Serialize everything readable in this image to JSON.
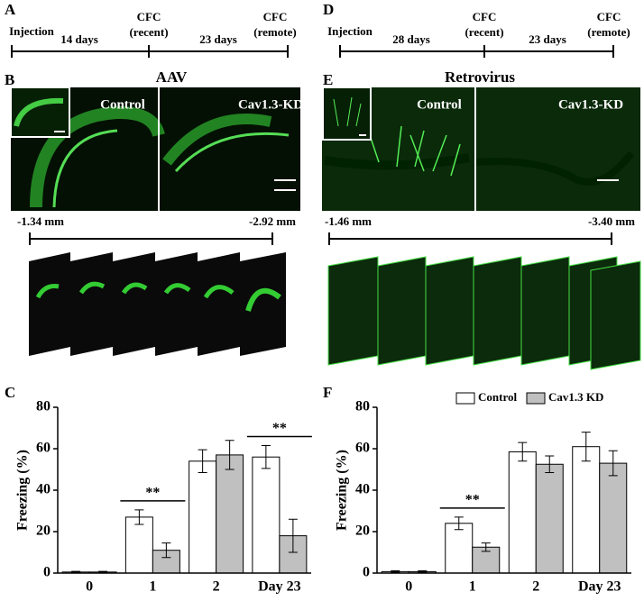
{
  "panels": {
    "A": {
      "label": "A",
      "timeline": [
        "Injection",
        "14 days",
        "CFC",
        "(recent)",
        "23 days",
        "CFC",
        "(remote)"
      ]
    },
    "D": {
      "label": "D",
      "timeline": [
        "Injection",
        "28 days",
        "CFC",
        "(recent)",
        "23 days",
        "CFC",
        "(remote)"
      ]
    },
    "B": {
      "label": "B",
      "title": "AAV",
      "left": "Control",
      "right": "Cav1.3-KD",
      "start": "-1.34 mm",
      "end": "-2.92 mm"
    },
    "E": {
      "label": "E",
      "title": "Retrovirus",
      "left": "Control",
      "right": "Cav1.3-KD",
      "start": "-1.46 mm",
      "end": "-3.40 mm"
    }
  },
  "chart_data": [
    {
      "type": "bar",
      "label": "C",
      "ylabel": "Freezing (%)",
      "categories": [
        "0",
        "1",
        "2",
        "Day 23"
      ],
      "series": [
        {
          "color": "#ffffff",
          "values": [
            0.5,
            27,
            54,
            56
          ],
          "errors": [
            0.3,
            3.5,
            5.5,
            5.5
          ]
        },
        {
          "color": "#c0c0c0",
          "values": [
            0.5,
            11,
            57,
            18
          ],
          "errors": [
            0.3,
            3.5,
            7,
            8
          ]
        }
      ],
      "annotations": [
        {
          "text": "**",
          "category": "1"
        },
        {
          "text": "**",
          "category": "Day 23"
        }
      ],
      "ylim": [
        0,
        80
      ],
      "yticks": [
        0,
        20,
        40,
        60,
        80
      ]
    },
    {
      "type": "bar",
      "label": "F",
      "ylabel": "Freezing (%)",
      "categories": [
        "0",
        "1",
        "2",
        "Day 23"
      ],
      "series": [
        {
          "name": "Control",
          "color": "#ffffff",
          "values": [
            0.7,
            24,
            58.5,
            61
          ],
          "errors": [
            0.4,
            3,
            4.5,
            7
          ]
        },
        {
          "name": "Cav1.3 KD",
          "color": "#c0c0c0",
          "values": [
            0.7,
            12.5,
            52.5,
            53
          ],
          "errors": [
            0.4,
            2,
            4,
            6
          ]
        }
      ],
      "annotations": [
        {
          "text": "**",
          "category": "1"
        }
      ],
      "legend": "top",
      "ylim": [
        0,
        80
      ],
      "yticks": [
        0,
        20,
        40,
        60,
        80
      ]
    }
  ]
}
